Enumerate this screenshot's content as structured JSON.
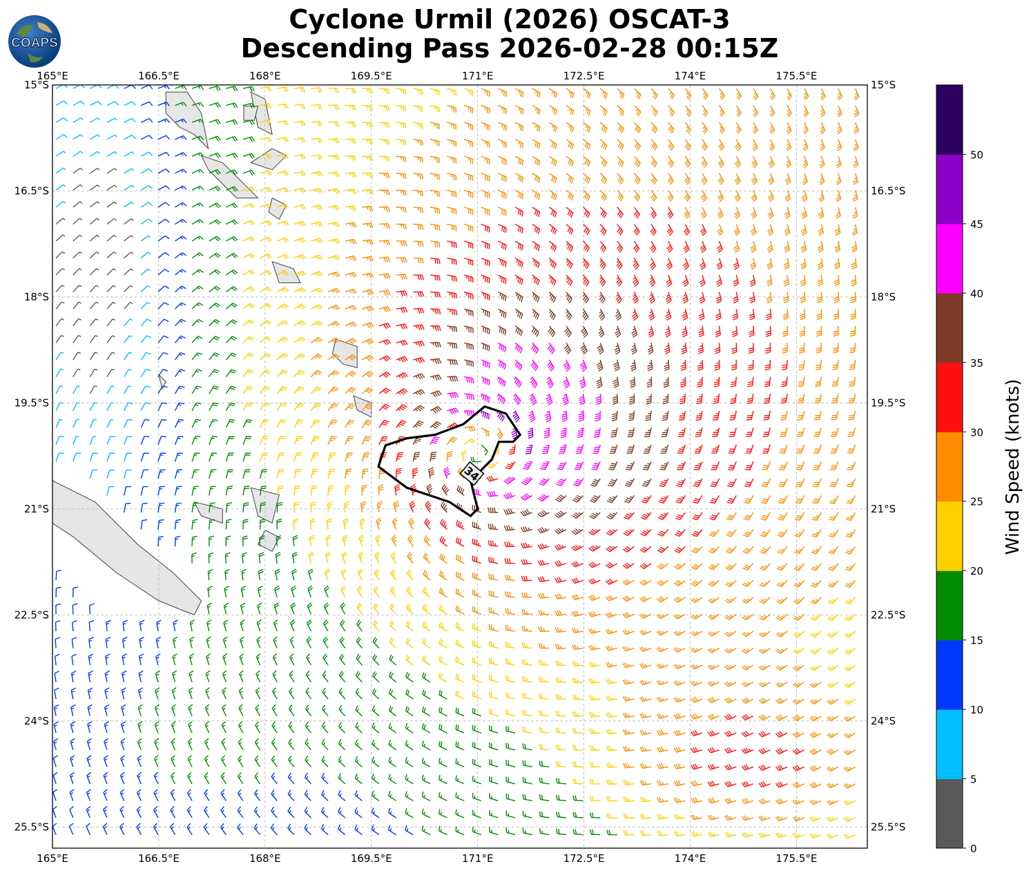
{
  "title_line1": "Cyclone Urmil (2026) OSCAT-3",
  "title_line2": "Descending Pass 2026-02-28 00:15Z",
  "logo_text": "COAPS",
  "map": {
    "lon_range": [
      165,
      176.5
    ],
    "lat_range": [
      -25.8,
      -15.0
    ],
    "lon_ticks": [
      "165°E",
      "166.5°E",
      "168°E",
      "169.5°E",
      "171°E",
      "172.5°E",
      "174°E",
      "175.5°E"
    ],
    "lat_ticks": [
      "15°S",
      "16.5°S",
      "18°S",
      "19.5°S",
      "21°S",
      "22.5°S",
      "24°S",
      "25.5°S"
    ],
    "gridlines": true,
    "storm_center_lon": 171.0,
    "storm_center_lat": -20.2,
    "contour_label": "34"
  },
  "colorbar": {
    "label": "Wind Speed (knots)",
    "bounds": [
      0,
      5,
      10,
      15,
      20,
      25,
      30,
      35,
      40,
      45,
      50,
      55
    ],
    "tick_labels": [
      "0",
      "5",
      "10",
      "15",
      "20",
      "25",
      "30",
      "35",
      "40",
      "45",
      "50"
    ],
    "colors": [
      "#5a5a5a",
      "#00bfff",
      "#0038ff",
      "#008c00",
      "#ffd000",
      "#ff8c00",
      "#ff1010",
      "#7f3b26",
      "#ff00ff",
      "#8c00c8",
      "#2d005f"
    ]
  },
  "colors": {
    "land": "#e6e6e6",
    "coast": "#404040",
    "grid": "#b4b4b4"
  }
}
